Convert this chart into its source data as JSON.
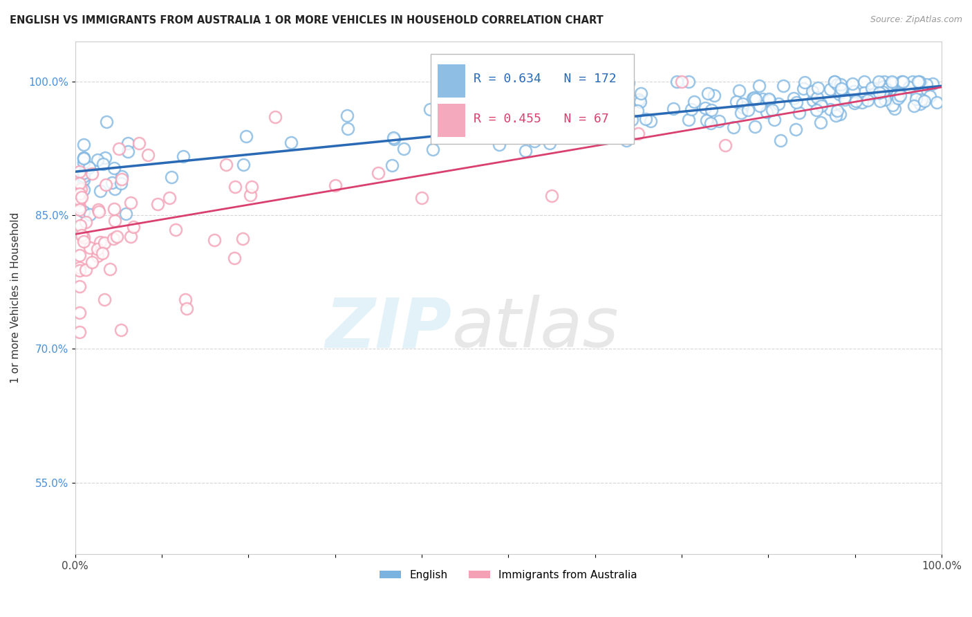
{
  "title": "ENGLISH VS IMMIGRANTS FROM AUSTRALIA 1 OR MORE VEHICLES IN HOUSEHOLD CORRELATION CHART",
  "source": "Source: ZipAtlas.com",
  "ylabel": "1 or more Vehicles in Household",
  "xlim": [
    0,
    1
  ],
  "ylim": [
    0.47,
    1.045
  ],
  "yticks": [
    0.55,
    0.7,
    0.85,
    1.0
  ],
  "ytick_labels": [
    "55.0%",
    "70.0%",
    "85.0%",
    "100.0%"
  ],
  "xtick_labels": [
    "0.0%",
    "",
    "",
    "",
    "",
    "",
    "",
    "",
    "",
    "",
    "100.0%"
  ],
  "english_R": 0.634,
  "english_N": 172,
  "immigrants_R": 0.455,
  "immigrants_N": 67,
  "english_color": "#7ab3e0",
  "english_line_color": "#2a6ab5",
  "immigrants_color": "#f4a0b5",
  "immigrants_line_color": "#d94070"
}
